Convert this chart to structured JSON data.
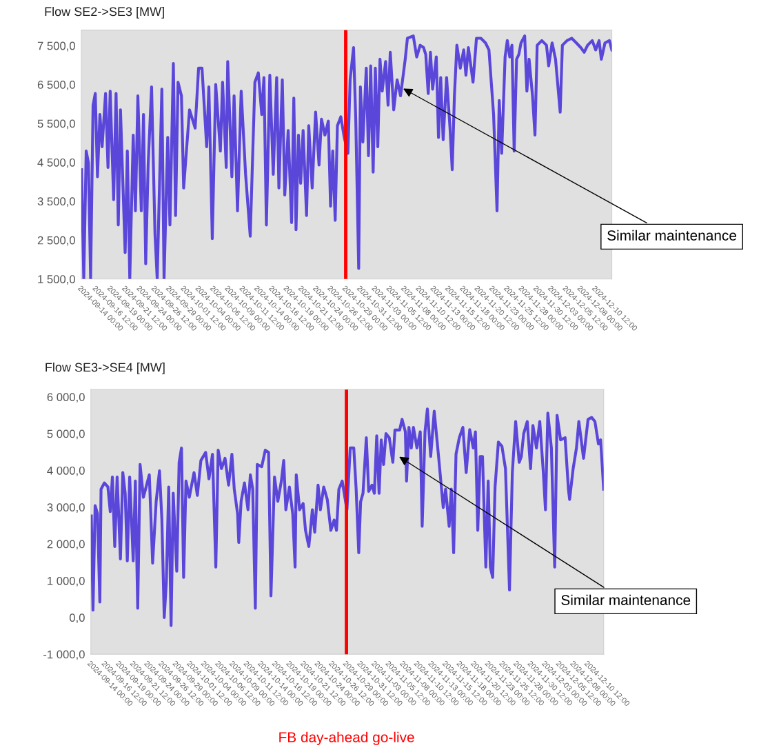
{
  "chart_data": [
    {
      "type": "line",
      "title": "Flow SE2->SE3 [MW]",
      "xlim": [
        "2024-09-14T00:00",
        "2024-12-13T07:00"
      ],
      "ylim": [
        1500,
        7900
      ],
      "yticks": [
        {
          "value": 1500,
          "label": "1 500,0"
        },
        {
          "value": 2500,
          "label": "2 500,0"
        },
        {
          "value": 3500,
          "label": "3 500,0"
        },
        {
          "value": 4500,
          "label": "4 500,0"
        },
        {
          "value": 5500,
          "label": "5 500,0"
        },
        {
          "value": 6500,
          "label": "6 500,0"
        },
        {
          "value": 7500,
          "label": "7 500,0"
        }
      ],
      "xticks": [
        {
          "value": "2024-09-14T00:00",
          "label": "2024-09-14 00:00"
        },
        {
          "value": "2024-09-16T12:00",
          "label": "2024-09-16 12:00"
        },
        {
          "value": "2024-09-19T00:00",
          "label": "2024-09-19 00:00"
        },
        {
          "value": "2024-09-21T12:00",
          "label": "2024-09-21 12:00"
        },
        {
          "value": "2024-09-24T00:00",
          "label": "2024-09-24 00:00"
        },
        {
          "value": "2024-09-26T12:00",
          "label": "2024-09-26 12:00"
        },
        {
          "value": "2024-09-29T00:00",
          "label": "2024-09-29 00:00"
        },
        {
          "value": "2024-10-01T12:00",
          "label": "2024-10-01 12:00"
        },
        {
          "value": "2024-10-04T00:00",
          "label": "2024-10-04 00:00"
        },
        {
          "value": "2024-10-06T12:00",
          "label": "2024-10-06 12:00"
        },
        {
          "value": "2024-10-09T00:00",
          "label": "2024-10-09 00:00"
        },
        {
          "value": "2024-10-11T12:00",
          "label": "2024-10-11 12:00"
        },
        {
          "value": "2024-10-14T00:00",
          "label": "2024-10-14 00:00"
        },
        {
          "value": "2024-10-16T12:00",
          "label": "2024-10-16 12:00"
        },
        {
          "value": "2024-10-19T00:00",
          "label": "2024-10-19 00:00"
        },
        {
          "value": "2024-10-21T12:00",
          "label": "2024-10-21 12:00"
        },
        {
          "value": "2024-10-24T00:00",
          "label": "2024-10-24 00:00"
        },
        {
          "value": "2024-10-26T12:00",
          "label": "2024-10-26 12:00"
        },
        {
          "value": "2024-10-29T00:00",
          "label": "2024-10-29 00:00"
        },
        {
          "value": "2024-10-31T12:00",
          "label": "2024-10-31 12:00"
        },
        {
          "value": "2024-11-03T00:00",
          "label": "2024-11-03 00:00"
        },
        {
          "value": "2024-11-05T12:00",
          "label": "2024-11-05 12:00"
        },
        {
          "value": "2024-11-08T00:00",
          "label": "2024-11-08 00:00"
        },
        {
          "value": "2024-11-10T12:00",
          "label": "2024-11-10 12:00"
        },
        {
          "value": "2024-11-13T00:00",
          "label": "2024-11-13 00:00"
        },
        {
          "value": "2024-11-15T12:00",
          "label": "2024-11-15 12:00"
        },
        {
          "value": "2024-11-18T00:00",
          "label": "2024-11-18 00:00"
        },
        {
          "value": "2024-11-20T12:00",
          "label": "2024-11-20 12:00"
        },
        {
          "value": "2024-11-23T00:00",
          "label": "2024-11-23 00:00"
        },
        {
          "value": "2024-11-25T12:00",
          "label": "2024-11-25 12:00"
        },
        {
          "value": "2024-11-28T00:00",
          "label": "2024-11-28 00:00"
        },
        {
          "value": "2024-11-30T12:00",
          "label": "2024-11-30 12:00"
        },
        {
          "value": "2024-12-03T00:00",
          "label": "2024-12-03 00:00"
        },
        {
          "value": "2024-12-05T12:00",
          "label": "2024-12-05 12:00"
        },
        {
          "value": "2024-12-08T00:00",
          "label": "2024-12-08 00:00"
        },
        {
          "value": "2024-12-10T12:00",
          "label": "2024-12-10 12:00"
        }
      ],
      "grid": false,
      "legend": false,
      "marker": "none",
      "line_style": "solid",
      "ref_lines": [
        {
          "axis": "x",
          "value": "2024-10-29T00:00",
          "color": "#ff0000"
        }
      ],
      "annotations": [
        {
          "text": "Similar maintenance",
          "x": "2024-11-07T12:00",
          "y": 6420
        }
      ],
      "series": [
        {
          "color": "#4b36d9",
          "x": [
            "2024-09-14T01:00",
            "2024-09-14T10:00",
            "2024-09-14T20:00",
            "2024-09-15T05:00",
            "2024-09-15T14:00",
            "2024-09-16T00:00",
            "2024-09-16T09:00",
            "2024-09-16T18:00",
            "2024-09-17T04:00",
            "2024-09-17T13:00",
            "2024-09-18T03:00",
            "2024-09-18T13:00",
            "2024-09-18T22:00",
            "2024-09-19T12:00",
            "2024-09-19T22:00",
            "2024-09-20T07:00",
            "2024-09-20T16:00",
            "2024-09-21T11:00",
            "2024-09-21T20:00",
            "2024-09-22T06:00",
            "2024-09-22T20:00",
            "2024-09-23T05:00",
            "2024-09-23T15:00",
            "2024-09-24T05:00",
            "2024-09-24T14:00",
            "2024-09-24T23:00",
            "2024-09-25T09:00",
            "2024-09-25T23:00",
            "2024-09-26T13:00",
            "2024-09-26T22:00",
            "2024-09-27T17:00",
            "2024-09-28T02:00",
            "2024-09-28T17:00",
            "2024-09-29T02:00",
            "2024-09-29T16:00",
            "2024-09-30T01:00",
            "2024-09-30T11:00",
            "2024-10-01T01:00",
            "2024-10-01T10:00",
            "2024-10-02T10:00",
            "2024-10-03T09:00",
            "2024-10-03T23:00",
            "2024-10-04T13:00",
            "2024-10-05T08:00",
            "2024-10-05T17:00",
            "2024-10-06T07:00",
            "2024-10-06T21:00",
            "2024-10-07T16:00",
            "2024-10-08T01:00",
            "2024-10-08T16:00",
            "2024-10-08T22:00",
            "2024-10-09T15:00",
            "2024-10-10T00:00",
            "2024-10-10T14:00",
            "2024-10-11T05:00",
            "2024-10-11T23:00",
            "2024-10-12T18:00",
            "2024-10-13T13:00",
            "2024-10-14T03:00",
            "2024-10-14T17:00",
            "2024-10-15T02:00",
            "2024-10-15T12:00",
            "2024-10-16T02:00",
            "2024-10-16T16:00",
            "2024-10-17T06:00",
            "2024-10-17T15:00",
            "2024-10-18T05:00",
            "2024-10-18T15:00",
            "2024-10-19T05:00",
            "2024-10-19T19:00",
            "2024-10-20T04:00",
            "2024-10-20T13:00",
            "2024-10-20T23:00",
            "2024-10-21T08:00",
            "2024-10-21T18:00",
            "2024-10-22T08:00",
            "2024-10-22T17:00",
            "2024-10-23T07:00",
            "2024-10-23T21:00",
            "2024-10-24T11:00",
            "2024-10-24T21:00",
            "2024-10-25T11:00",
            "2024-10-26T01:00",
            "2024-10-26T10:00",
            "2024-10-26T19:00",
            "2024-10-27T05:00",
            "2024-10-27T14:00",
            "2024-10-28T04:00",
            "2024-10-28T18:00",
            "2024-10-29T09:00",
            "2024-10-29T18:00",
            "2024-10-30T08:00",
            "2024-10-30T17:00",
            "2024-10-31T05:00",
            "2024-10-31T12:00",
            "2024-10-31T22:00",
            "2024-11-01T12:00",
            "2024-11-01T21:00",
            "2024-11-02T06:00",
            "2024-11-02T16:00",
            "2024-11-03T01:00",
            "2024-11-03T11:00",
            "2024-11-03T20:00",
            "2024-11-04T05:00",
            "2024-11-04T19:00",
            "2024-11-05T05:00",
            "2024-11-05T14:00",
            "2024-11-06T04:00",
            "2024-11-06T18:00",
            "2024-11-07T08:00",
            "2024-11-08T03:00",
            "2024-11-08T12:00",
            "2024-11-09T12:00",
            "2024-11-10T02:00",
            "2024-11-10T16:00",
            "2024-11-11T06:00",
            "2024-11-11T15:00",
            "2024-11-12T01:00",
            "2024-11-12T10:00",
            "2024-11-12T19:00",
            "2024-11-13T10:00",
            "2024-11-13T19:00",
            "2024-11-14T04:00",
            "2024-11-14T14:00",
            "2024-11-15T04:00",
            "2024-11-15T18:00",
            "2024-11-16T03:00",
            "2024-11-16T12:00",
            "2024-11-16T22:00",
            "2024-11-17T12:00",
            "2024-11-18T02:00",
            "2024-11-18T11:00",
            "2024-11-18T21:00",
            "2024-11-19T16:00",
            "2024-11-20T06:00",
            "2024-11-21T00:00",
            "2024-11-21T19:00",
            "2024-11-22T09:00",
            "2024-11-23T04:00",
            "2024-11-23T18:00",
            "2024-11-24T03:00",
            "2024-11-24T13:00",
            "2024-11-25T03:00",
            "2024-11-25T12:00",
            "2024-11-25T22:00",
            "2024-11-26T07:00",
            "2024-11-26T16:00",
            "2024-11-27T02:00",
            "2024-11-27T11:00",
            "2024-11-27T20:00",
            "2024-11-28T11:00",
            "2024-11-28T20:00",
            "2024-11-29T05:00",
            "2024-11-29T19:00",
            "2024-11-30T05:00",
            "2024-11-30T14:00",
            "2024-12-01T09:00",
            "2024-12-02T04:00",
            "2024-12-02T13:00",
            "2024-12-03T03:00",
            "2024-12-03T17:00",
            "2024-12-04T12:00",
            "2024-12-04T21:00",
            "2024-12-05T16:00",
            "2024-12-06T11:00",
            "2024-12-07T06:00",
            "2024-12-08T00:00",
            "2024-12-08T14:00",
            "2024-12-09T04:00",
            "2024-12-09T23:00",
            "2024-12-10T13:00",
            "2024-12-11T03:00",
            "2024-12-11T12:00",
            "2024-12-12T03:00",
            "2024-12-12T21:00",
            "2024-12-13T07:00"
          ],
          "values": [
            4310,
            1500,
            4790,
            4490,
            1500,
            5970,
            6270,
            4130,
            5730,
            4900,
            6270,
            4370,
            6330,
            3540,
            6270,
            2890,
            5850,
            2180,
            4790,
            1500,
            5200,
            3250,
            6210,
            3250,
            5730,
            1890,
            4430,
            6440,
            2650,
            1500,
            6380,
            1500,
            5140,
            2890,
            7040,
            3130,
            6560,
            6210,
            3840,
            5850,
            5380,
            6920,
            6920,
            4900,
            6440,
            2540,
            6500,
            4790,
            6560,
            4370,
            7090,
            4130,
            6210,
            3250,
            6330,
            4190,
            2600,
            6560,
            6800,
            5730,
            6680,
            2890,
            6740,
            4190,
            6680,
            3840,
            6620,
            3660,
            5320,
            2950,
            6150,
            2770,
            5200,
            3960,
            5320,
            3130,
            5440,
            3840,
            5790,
            4430,
            5610,
            5200,
            5560,
            3370,
            4790,
            3010,
            5440,
            5670,
            5140,
            4730,
            6620,
            7450,
            5610,
            1770,
            6440,
            5020,
            6920,
            4670,
            6980,
            4250,
            6920,
            4900,
            7150,
            6330,
            7090,
            5970,
            7330,
            5850,
            6620,
            6210,
            7150,
            7690,
            7750,
            7210,
            7510,
            7450,
            7270,
            6270,
            7330,
            6380,
            7210,
            5140,
            6680,
            5080,
            6680,
            5380,
            4310,
            6210,
            7510,
            6920,
            7390,
            6740,
            7450,
            6560,
            7690,
            7690,
            7570,
            7390,
            5730,
            3250,
            6090,
            4730,
            7210,
            7630,
            7210,
            7510,
            4790,
            7150,
            7270,
            7570,
            7750,
            6330,
            7150,
            6210,
            5200,
            7510,
            7630,
            7510,
            6980,
            7570,
            7150,
            5790,
            7510,
            7630,
            7690,
            7570,
            7450,
            7330,
            7510,
            7630,
            7390,
            7630,
            7150,
            7570,
            7630,
            7390
          ]
        }
      ]
    },
    {
      "type": "line",
      "title": "Flow SE3->SE4 [MW]",
      "xlim": [
        "2024-09-14T00:00",
        "2024-12-13T07:00"
      ],
      "ylim": [
        -1000,
        6200
      ],
      "yticks": [
        {
          "value": -1000,
          "label": "-1 000,0"
        },
        {
          "value": 0,
          "label": "0,0"
        },
        {
          "value": 1000,
          "label": "1 000,0"
        },
        {
          "value": 2000,
          "label": "2 000,0"
        },
        {
          "value": 3000,
          "label": "3 000,0"
        },
        {
          "value": 4000,
          "label": "4 000,0"
        },
        {
          "value": 5000,
          "label": "5 000,0"
        },
        {
          "value": 6000,
          "label": "6 000,0"
        }
      ],
      "xticks": [
        {
          "value": "2024-09-14T00:00",
          "label": "2024-09-14 00:00"
        },
        {
          "value": "2024-09-16T12:00",
          "label": "2024-09-16 12:00"
        },
        {
          "value": "2024-09-19T00:00",
          "label": "2024-09-19 00:00"
        },
        {
          "value": "2024-09-21T12:00",
          "label": "2024-09-21 12:00"
        },
        {
          "value": "2024-09-24T00:00",
          "label": "2024-09-24 00:00"
        },
        {
          "value": "2024-09-26T12:00",
          "label": "2024-09-26 12:00"
        },
        {
          "value": "2024-09-29T00:00",
          "label": "2024-09-29 00:00"
        },
        {
          "value": "2024-10-01T12:00",
          "label": "2024-10-01 12:00"
        },
        {
          "value": "2024-10-04T00:00",
          "label": "2024-10-04 00:00"
        },
        {
          "value": "2024-10-06T12:00",
          "label": "2024-10-06 12:00"
        },
        {
          "value": "2024-10-09T00:00",
          "label": "2024-10-09 00:00"
        },
        {
          "value": "2024-10-11T12:00",
          "label": "2024-10-11 12:00"
        },
        {
          "value": "2024-10-14T00:00",
          "label": "2024-10-14 00:00"
        },
        {
          "value": "2024-10-16T12:00",
          "label": "2024-10-16 12:00"
        },
        {
          "value": "2024-10-19T00:00",
          "label": "2024-10-19 00:00"
        },
        {
          "value": "2024-10-21T12:00",
          "label": "2024-10-21 12:00"
        },
        {
          "value": "2024-10-24T00:00",
          "label": "2024-10-24 00:00"
        },
        {
          "value": "2024-10-26T12:00",
          "label": "2024-10-26 12:00"
        },
        {
          "value": "2024-10-29T00:00",
          "label": "2024-10-29 00:00"
        },
        {
          "value": "2024-10-31T12:00",
          "label": "2024-10-31 12:00"
        },
        {
          "value": "2024-11-03T00:00",
          "label": "2024-11-03 00:00"
        },
        {
          "value": "2024-11-05T12:00",
          "label": "2024-11-05 12:00"
        },
        {
          "value": "2024-11-08T00:00",
          "label": "2024-11-08 00:00"
        },
        {
          "value": "2024-11-10T12:00",
          "label": "2024-11-10 12:00"
        },
        {
          "value": "2024-11-13T00:00",
          "label": "2024-11-13 00:00"
        },
        {
          "value": "2024-11-15T12:00",
          "label": "2024-11-15 12:00"
        },
        {
          "value": "2024-11-18T00:00",
          "label": "2024-11-18 00:00"
        },
        {
          "value": "2024-11-20T12:00",
          "label": "2024-11-20 12:00"
        },
        {
          "value": "2024-11-23T00:00",
          "label": "2024-11-23 00:00"
        },
        {
          "value": "2024-11-25T12:00",
          "label": "2024-11-25 12:00"
        },
        {
          "value": "2024-11-28T00:00",
          "label": "2024-11-28 00:00"
        },
        {
          "value": "2024-11-30T12:00",
          "label": "2024-11-30 12:00"
        },
        {
          "value": "2024-12-03T00:00",
          "label": "2024-12-03 00:00"
        },
        {
          "value": "2024-12-05T12:00",
          "label": "2024-12-05 12:00"
        },
        {
          "value": "2024-12-08T00:00",
          "label": "2024-12-08 00:00"
        },
        {
          "value": "2024-12-10T12:00",
          "label": "2024-12-10 12:00"
        }
      ],
      "grid": false,
      "legend": false,
      "marker": "none",
      "line_style": "solid",
      "ref_lines": [
        {
          "axis": "x",
          "value": "2024-10-29T00:00",
          "color": "#ff0000",
          "label": "FB day-ahead go-live"
        }
      ],
      "annotations": [
        {
          "text": "Similar maintenance",
          "x": "2024-11-07T00:00",
          "y": 4400
        }
      ],
      "series": [
        {
          "color": "#4b36d9",
          "x": [
            "2024-09-14T02:00",
            "2024-09-14T09:00",
            "2024-09-14T18:00",
            "2024-09-15T04:00",
            "2024-09-15T14:00",
            "2024-09-15T19:00",
            "2024-09-16T09:00",
            "2024-09-17T00:00",
            "2024-09-17T10:00",
            "2024-09-17T19:00",
            "2024-09-18T05:00",
            "2024-09-18T15:00",
            "2024-09-19T05:00",
            "2024-09-19T15:00",
            "2024-09-20T01:00",
            "2024-09-20T10:00",
            "2024-09-20T20:00",
            "2024-09-21T11:00",
            "2024-09-21T20:00",
            "2024-09-22T06:00",
            "2024-09-22T16:00",
            "2024-09-23T06:00",
            "2024-09-24T07:00",
            "2024-09-24T21:00",
            "2024-09-25T12:00",
            "2024-09-26T02:00",
            "2024-09-26T12:00",
            "2024-09-26T22:00",
            "2024-09-27T07:00",
            "2024-09-27T17:00",
            "2024-09-28T03:00",
            "2024-09-28T12:00",
            "2024-09-29T03:00",
            "2024-09-29T13:00",
            "2024-09-29T23:00",
            "2024-09-30T08:00",
            "2024-09-30T18:00",
            "2024-10-01T08:00",
            "2024-10-02T04:00",
            "2024-10-02T18:00",
            "2024-10-03T09:00",
            "2024-10-04T05:00",
            "2024-10-04T19:00",
            "2024-10-05T10:00",
            "2024-10-06T00:00",
            "2024-10-06T10:00",
            "2024-10-07T00:00",
            "2024-10-07T15:00",
            "2024-10-08T06:00",
            "2024-10-08T20:00",
            "2024-10-09T06:00",
            "2024-10-09T20:00",
            "2024-10-10T01:00",
            "2024-10-10T11:00",
            "2024-10-11T01:00",
            "2024-10-11T16:00",
            "2024-10-12T02:00",
            "2024-10-12T12:00",
            "2024-10-12T23:00",
            "2024-10-13T07:00",
            "2024-10-14T02:00",
            "2024-10-14T17:00",
            "2024-10-15T07:00",
            "2024-10-15T17:00",
            "2024-10-16T08:00",
            "2024-10-16T22:00",
            "2024-10-17T13:00",
            "2024-10-17T23:00",
            "2024-10-18T08:00",
            "2024-10-18T23:00",
            "2024-10-19T13:00",
            "2024-10-19T23:00",
            "2024-10-20T04:00",
            "2024-10-20T18:00",
            "2024-10-21T09:00",
            "2024-10-21T19:00",
            "2024-10-22T09:00",
            "2024-10-23T00:00",
            "2024-10-23T10:00",
            "2024-10-24T00:00",
            "2024-10-24T10:00",
            "2024-10-25T00:00",
            "2024-10-25T15:00",
            "2024-10-26T06:00",
            "2024-10-26T20:00",
            "2024-10-27T06:00",
            "2024-10-27T16:00",
            "2024-10-28T06:00",
            "2024-10-29T02:00",
            "2024-10-29T16:00",
            "2024-10-30T07:00",
            "2024-10-30T17:00",
            "2024-10-31T04:00",
            "2024-10-31T12:00",
            "2024-10-31T22:00",
            "2024-11-01T12:00",
            "2024-11-01T22:00",
            "2024-11-02T12:00",
            "2024-11-02T22:00",
            "2024-11-03T08:00",
            "2024-11-03T18:00",
            "2024-11-04T03:00",
            "2024-11-04T13:00",
            "2024-11-04T23:00",
            "2024-11-05T13:00",
            "2024-11-06T04:00",
            "2024-11-06T13:00",
            "2024-11-07T09:00",
            "2024-11-07T19:00",
            "2024-11-08T09:00",
            "2024-11-08T14:00",
            "2024-11-09T00:00",
            "2024-11-09T10:00",
            "2024-11-09T19:00",
            "2024-11-10T10:00",
            "2024-11-11T00:00",
            "2024-11-11T08:00",
            "2024-11-11T20:00",
            "2024-11-12T06:00",
            "2024-11-12T20:00",
            "2024-11-13T11:00",
            "2024-11-14T06:00",
            "2024-11-15T01:00",
            "2024-11-15T11:00",
            "2024-11-16T02:00",
            "2024-11-16T11:00",
            "2024-11-16T21:00",
            "2024-11-17T07:00",
            "2024-11-17T21:00",
            "2024-11-18T12:00",
            "2024-11-19T02:00",
            "2024-11-19T17:00",
            "2024-11-20T08:00",
            "2024-11-20T17:00",
            "2024-11-21T03:00",
            "2024-11-21T13:00",
            "2024-11-21T23:00",
            "2024-11-22T13:00",
            "2024-11-22T23:00",
            "2024-11-23T08:00",
            "2024-11-23T18:00",
            "2024-11-24T04:00",
            "2024-11-24T18:00",
            "2024-11-25T09:00",
            "2024-11-26T00:00",
            "2024-11-26T17:00",
            "2024-11-27T05:00",
            "2024-11-27T19:00",
            "2024-11-28T10:00",
            "2024-11-28T19:00",
            "2024-11-29T05:00",
            "2024-11-29T20:00",
            "2024-11-30T10:00",
            "2024-11-30T20:00",
            "2024-12-01T11:00",
            "2024-12-02T01:00",
            "2024-12-02T16:00",
            "2024-12-03T01:00",
            "2024-12-03T11:00",
            "2024-12-04T02:00",
            "2024-12-04T16:00",
            "2024-12-05T02:00",
            "2024-12-05T17:00",
            "2024-12-06T12:00",
            "2024-12-07T02:00",
            "2024-12-07T07:00",
            "2024-12-07T22:00",
            "2024-12-08T12:00",
            "2024-12-08T22:00",
            "2024-12-09T18:00",
            "2024-12-10T13:00",
            "2024-12-11T04:00",
            "2024-12-11T18:00",
            "2024-12-12T09:00",
            "2024-12-12T18:00",
            "2024-12-13T07:00"
          ],
          "values": [
            2760,
            200,
            3040,
            2820,
            420,
            3490,
            3660,
            3550,
            2880,
            3820,
            1930,
            3820,
            1590,
            3940,
            3380,
            1540,
            3820,
            1540,
            3710,
            250,
            4160,
            3270,
            3880,
            1480,
            3160,
            3990,
            2680,
            0,
            980,
            3550,
            -220,
            3380,
            1260,
            4220,
            4610,
            1090,
            3710,
            3270,
            3940,
            3320,
            4270,
            4490,
            3770,
            4440,
            1370,
            4550,
            4050,
            4330,
            3600,
            4440,
            3490,
            2820,
            2040,
            3160,
            3660,
            2930,
            3880,
            3490,
            250,
            4160,
            4100,
            4550,
            4490,
            590,
            3820,
            3160,
            3710,
            4270,
            2930,
            3550,
            2820,
            1370,
            3880,
            2930,
            3100,
            2370,
            1930,
            2930,
            2320,
            3600,
            2930,
            3550,
            3210,
            2370,
            2650,
            2370,
            3490,
            3710,
            2930,
            4610,
            4610,
            3490,
            1760,
            3150,
            3380,
            4890,
            3430,
            3600,
            3380,
            4940,
            3380,
            4830,
            4160,
            5000,
            4890,
            4220,
            5100,
            5100,
            5390,
            5050,
            3710,
            5170,
            4610,
            5170,
            4610,
            5050,
            2480,
            5050,
            5670,
            4380,
            5610,
            4330,
            2990,
            3490,
            2480,
            3490,
            1760,
            4440,
            4890,
            5170,
            3940,
            5110,
            4610,
            5050,
            2370,
            4380,
            4380,
            1370,
            3710,
            1370,
            1090,
            3550,
            4770,
            4660,
            4050,
            750,
            3940,
            5330,
            4220,
            4380,
            5000,
            5330,
            4050,
            5220,
            4610,
            5330,
            3940,
            2930,
            5560,
            4610,
            1370,
            5500,
            4830,
            4890,
            3490,
            3210,
            4050,
            4610,
            5330,
            4330,
            5390,
            5440,
            5330,
            4720,
            4830,
            3490
          ]
        }
      ]
    }
  ]
}
